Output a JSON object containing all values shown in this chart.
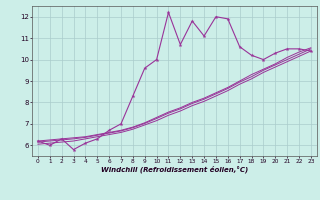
{
  "xlabel": "Windchill (Refroidissement éolien,°C)",
  "bg_color": "#cceee8",
  "line_color": "#993399",
  "grid_color": "#aacccc",
  "xlim": [
    -0.5,
    23.5
  ],
  "ylim": [
    5.5,
    12.5
  ],
  "yticks": [
    6,
    7,
    8,
    9,
    10,
    11,
    12
  ],
  "xticks": [
    0,
    1,
    2,
    3,
    4,
    5,
    6,
    7,
    8,
    9,
    10,
    11,
    12,
    13,
    14,
    15,
    16,
    17,
    18,
    19,
    20,
    21,
    22,
    23
  ],
  "series_main": {
    "x": [
      0,
      1,
      2,
      3,
      4,
      5,
      6,
      7,
      8,
      9,
      10,
      11,
      12,
      13,
      14,
      15,
      16,
      17,
      18,
      19,
      20,
      21,
      22,
      23
    ],
    "y": [
      6.2,
      6.0,
      6.3,
      5.8,
      6.1,
      6.3,
      6.7,
      7.0,
      8.3,
      9.6,
      10.0,
      12.2,
      10.7,
      11.8,
      11.1,
      12.0,
      11.9,
      10.6,
      10.2,
      10.0,
      10.3,
      10.5,
      10.5,
      10.4
    ]
  },
  "series_line1": {
    "x": [
      0,
      1,
      2,
      3,
      4,
      5,
      6,
      7,
      8,
      9,
      10,
      11,
      12,
      13,
      14,
      15,
      16,
      17,
      18,
      19,
      20,
      21,
      22,
      23
    ],
    "y": [
      6.2,
      6.25,
      6.3,
      6.35,
      6.4,
      6.5,
      6.6,
      6.7,
      6.85,
      7.05,
      7.3,
      7.55,
      7.75,
      8.0,
      8.2,
      8.45,
      8.7,
      9.0,
      9.3,
      9.55,
      9.8,
      10.1,
      10.35,
      10.55
    ]
  },
  "series_line2": {
    "x": [
      0,
      1,
      2,
      3,
      4,
      5,
      6,
      7,
      8,
      9,
      10,
      11,
      12,
      13,
      14,
      15,
      16,
      17,
      18,
      19,
      20,
      21,
      22,
      23
    ],
    "y": [
      6.05,
      6.1,
      6.15,
      6.2,
      6.3,
      6.4,
      6.5,
      6.6,
      6.75,
      6.95,
      7.15,
      7.4,
      7.6,
      7.85,
      8.05,
      8.3,
      8.55,
      8.85,
      9.1,
      9.4,
      9.65,
      9.9,
      10.15,
      10.4
    ]
  },
  "series_line3": {
    "x": [
      0,
      1,
      2,
      3,
      4,
      5,
      6,
      7,
      8,
      9,
      10,
      11,
      12,
      13,
      14,
      15,
      16,
      17,
      18,
      19,
      20,
      21,
      22,
      23
    ],
    "y": [
      6.15,
      6.2,
      6.25,
      6.3,
      6.37,
      6.47,
      6.57,
      6.67,
      6.82,
      7.02,
      7.25,
      7.5,
      7.7,
      7.95,
      8.15,
      8.4,
      8.65,
      8.95,
      9.2,
      9.5,
      9.75,
      10.0,
      10.25,
      10.5
    ]
  }
}
